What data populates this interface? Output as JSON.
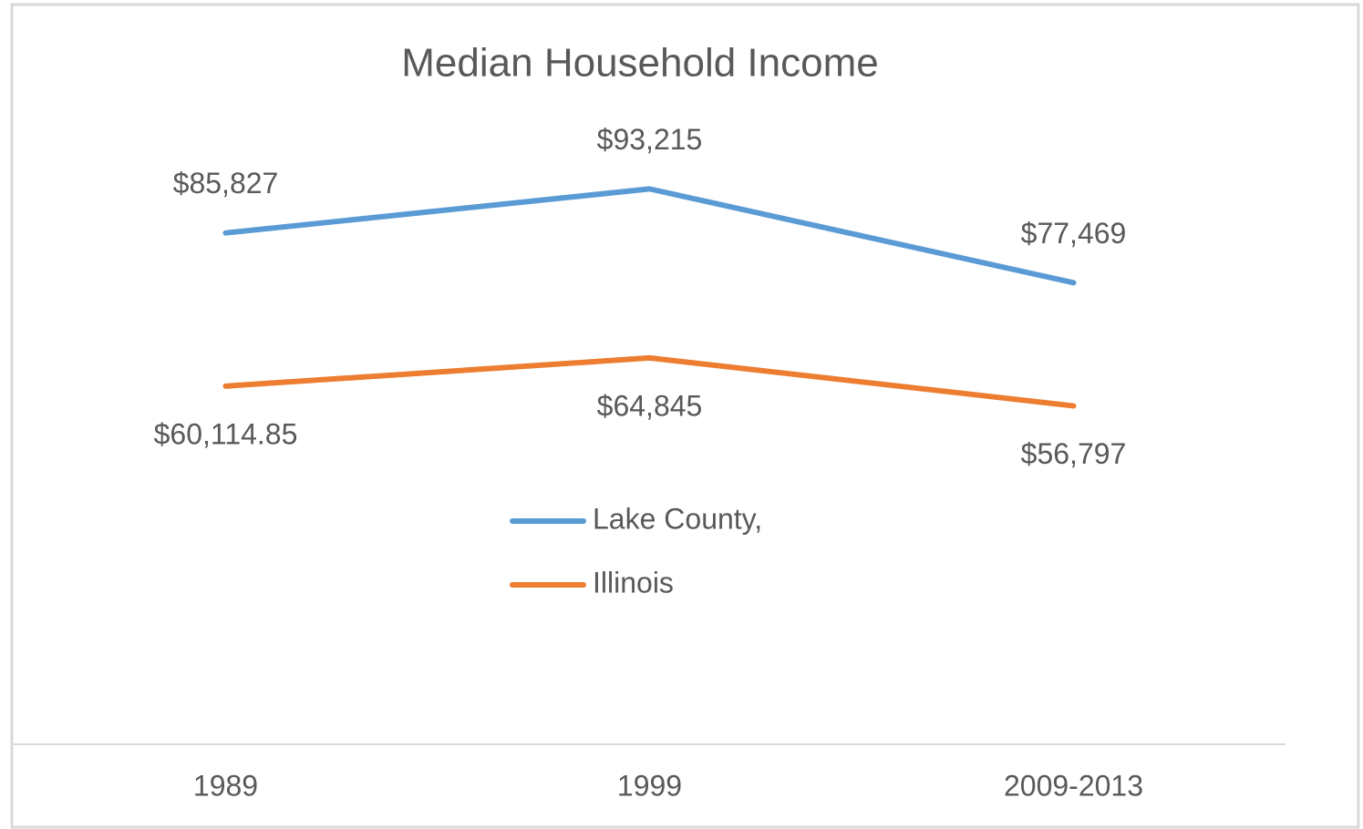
{
  "chart_data": {
    "type": "line",
    "title": "Median Household Income",
    "categories": [
      "1989",
      "1999",
      "2009-2013"
    ],
    "series": [
      {
        "name": "Lake County,",
        "color": "#5b9bd5",
        "values": [
          85827,
          93215,
          77469
        ],
        "value_labels": [
          "$85,827",
          "$93,215",
          "$77,469"
        ]
      },
      {
        "name": "Illinois",
        "color": "#ed7d31",
        "values": [
          60114.85,
          64845,
          56797
        ],
        "value_labels": [
          "$60,114.85",
          "$64,845",
          "$56,797"
        ]
      }
    ],
    "ylim": [
      0,
      100000
    ]
  }
}
